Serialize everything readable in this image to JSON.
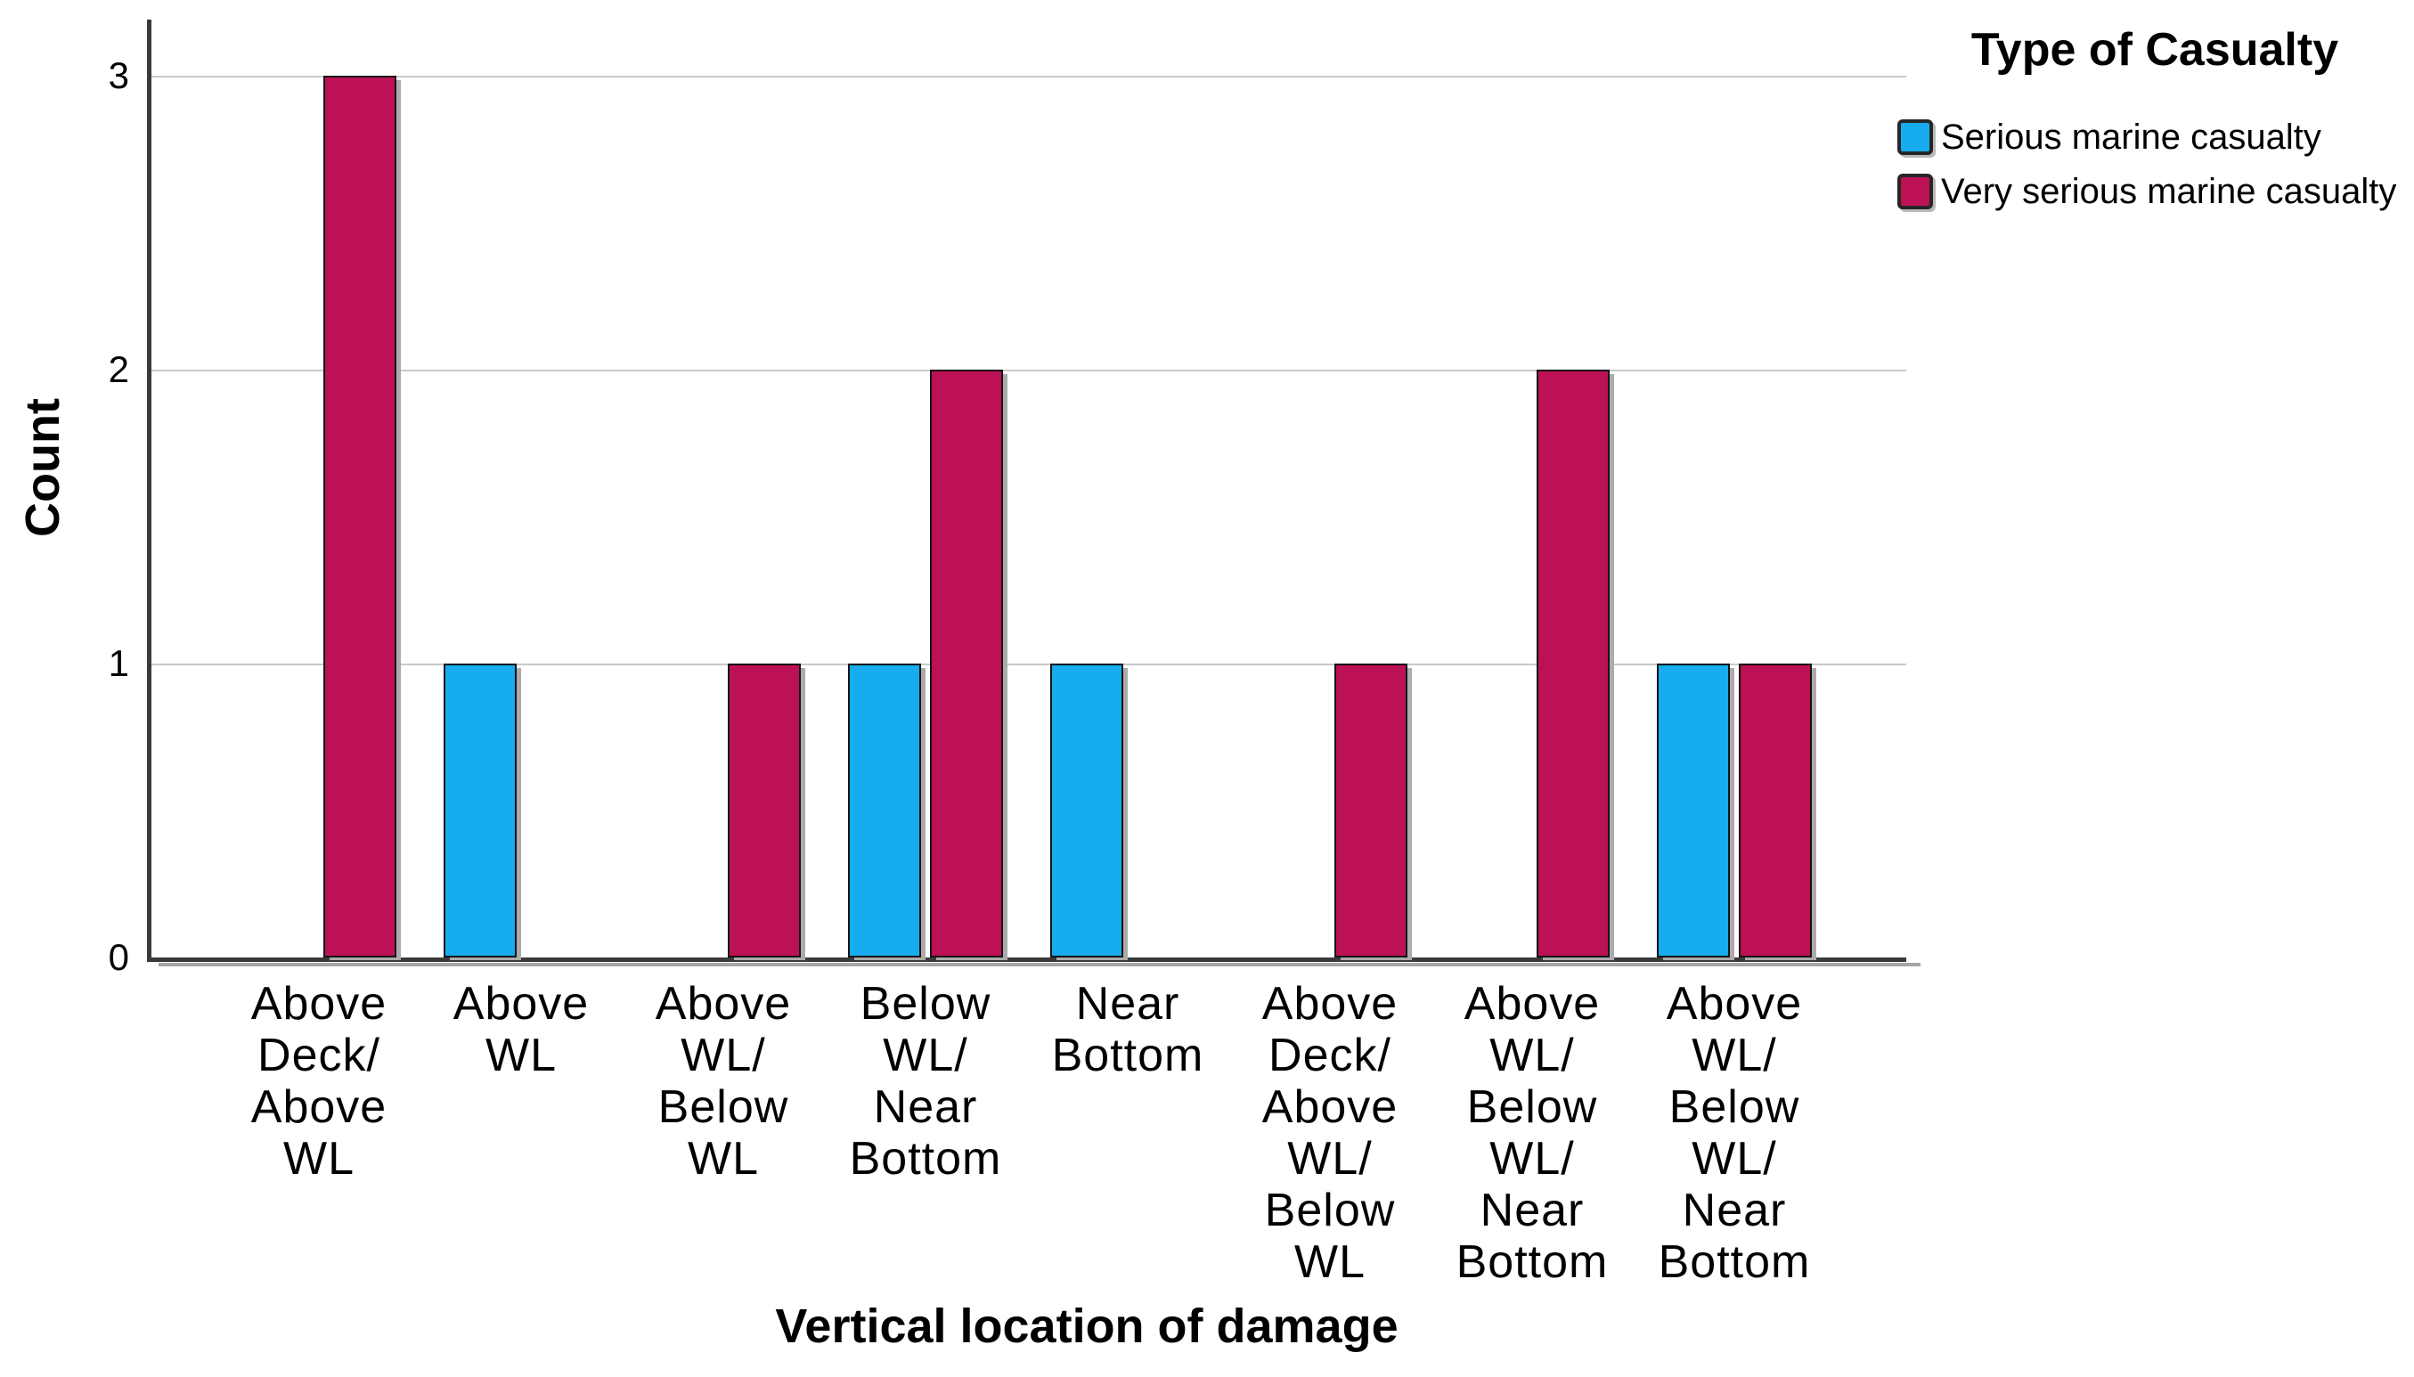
{
  "chart_data": {
    "type": "bar",
    "legend_title": "Type of Casualty",
    "xlabel": "Vertical location of damage",
    "ylabel": "Count",
    "ylim": [
      0,
      3
    ],
    "yticks": [
      0,
      1,
      2,
      3
    ],
    "grid": "horizontal",
    "legend_position": "top-right",
    "categories": [
      [
        "Above",
        "Deck/",
        "Above",
        "WL"
      ],
      [
        "Above",
        "WL"
      ],
      [
        "Above",
        "WL/",
        "Below",
        "WL"
      ],
      [
        "Below",
        "WL/",
        "Near",
        "Bottom"
      ],
      [
        "Near",
        "Bottom"
      ],
      [
        "Above",
        "Deck/",
        "Above",
        "WL/",
        "Below",
        "WL"
      ],
      [
        "Above",
        "WL/",
        "Below",
        "WL/",
        "Near",
        "Bottom"
      ],
      [
        "Above",
        "WL/",
        "Below",
        "WL/",
        "Near",
        "Bottom"
      ]
    ],
    "series": [
      {
        "name": "Serious marine casualty",
        "color": "#17ACEE",
        "values": [
          0,
          1,
          0,
          1,
          1,
          0,
          0,
          1
        ]
      },
      {
        "name": "Very serious marine casualty",
        "color": "#BC1154",
        "values": [
          3,
          0,
          1,
          2,
          0,
          1,
          2,
          1
        ]
      }
    ]
  },
  "colors": {
    "axis": "#3A3A3A",
    "gridline": "#C9C9C9",
    "bar_outline": "#141414",
    "shadow": "#A6A6A6",
    "text": "#000000",
    "background": "#FFFFFF"
  }
}
